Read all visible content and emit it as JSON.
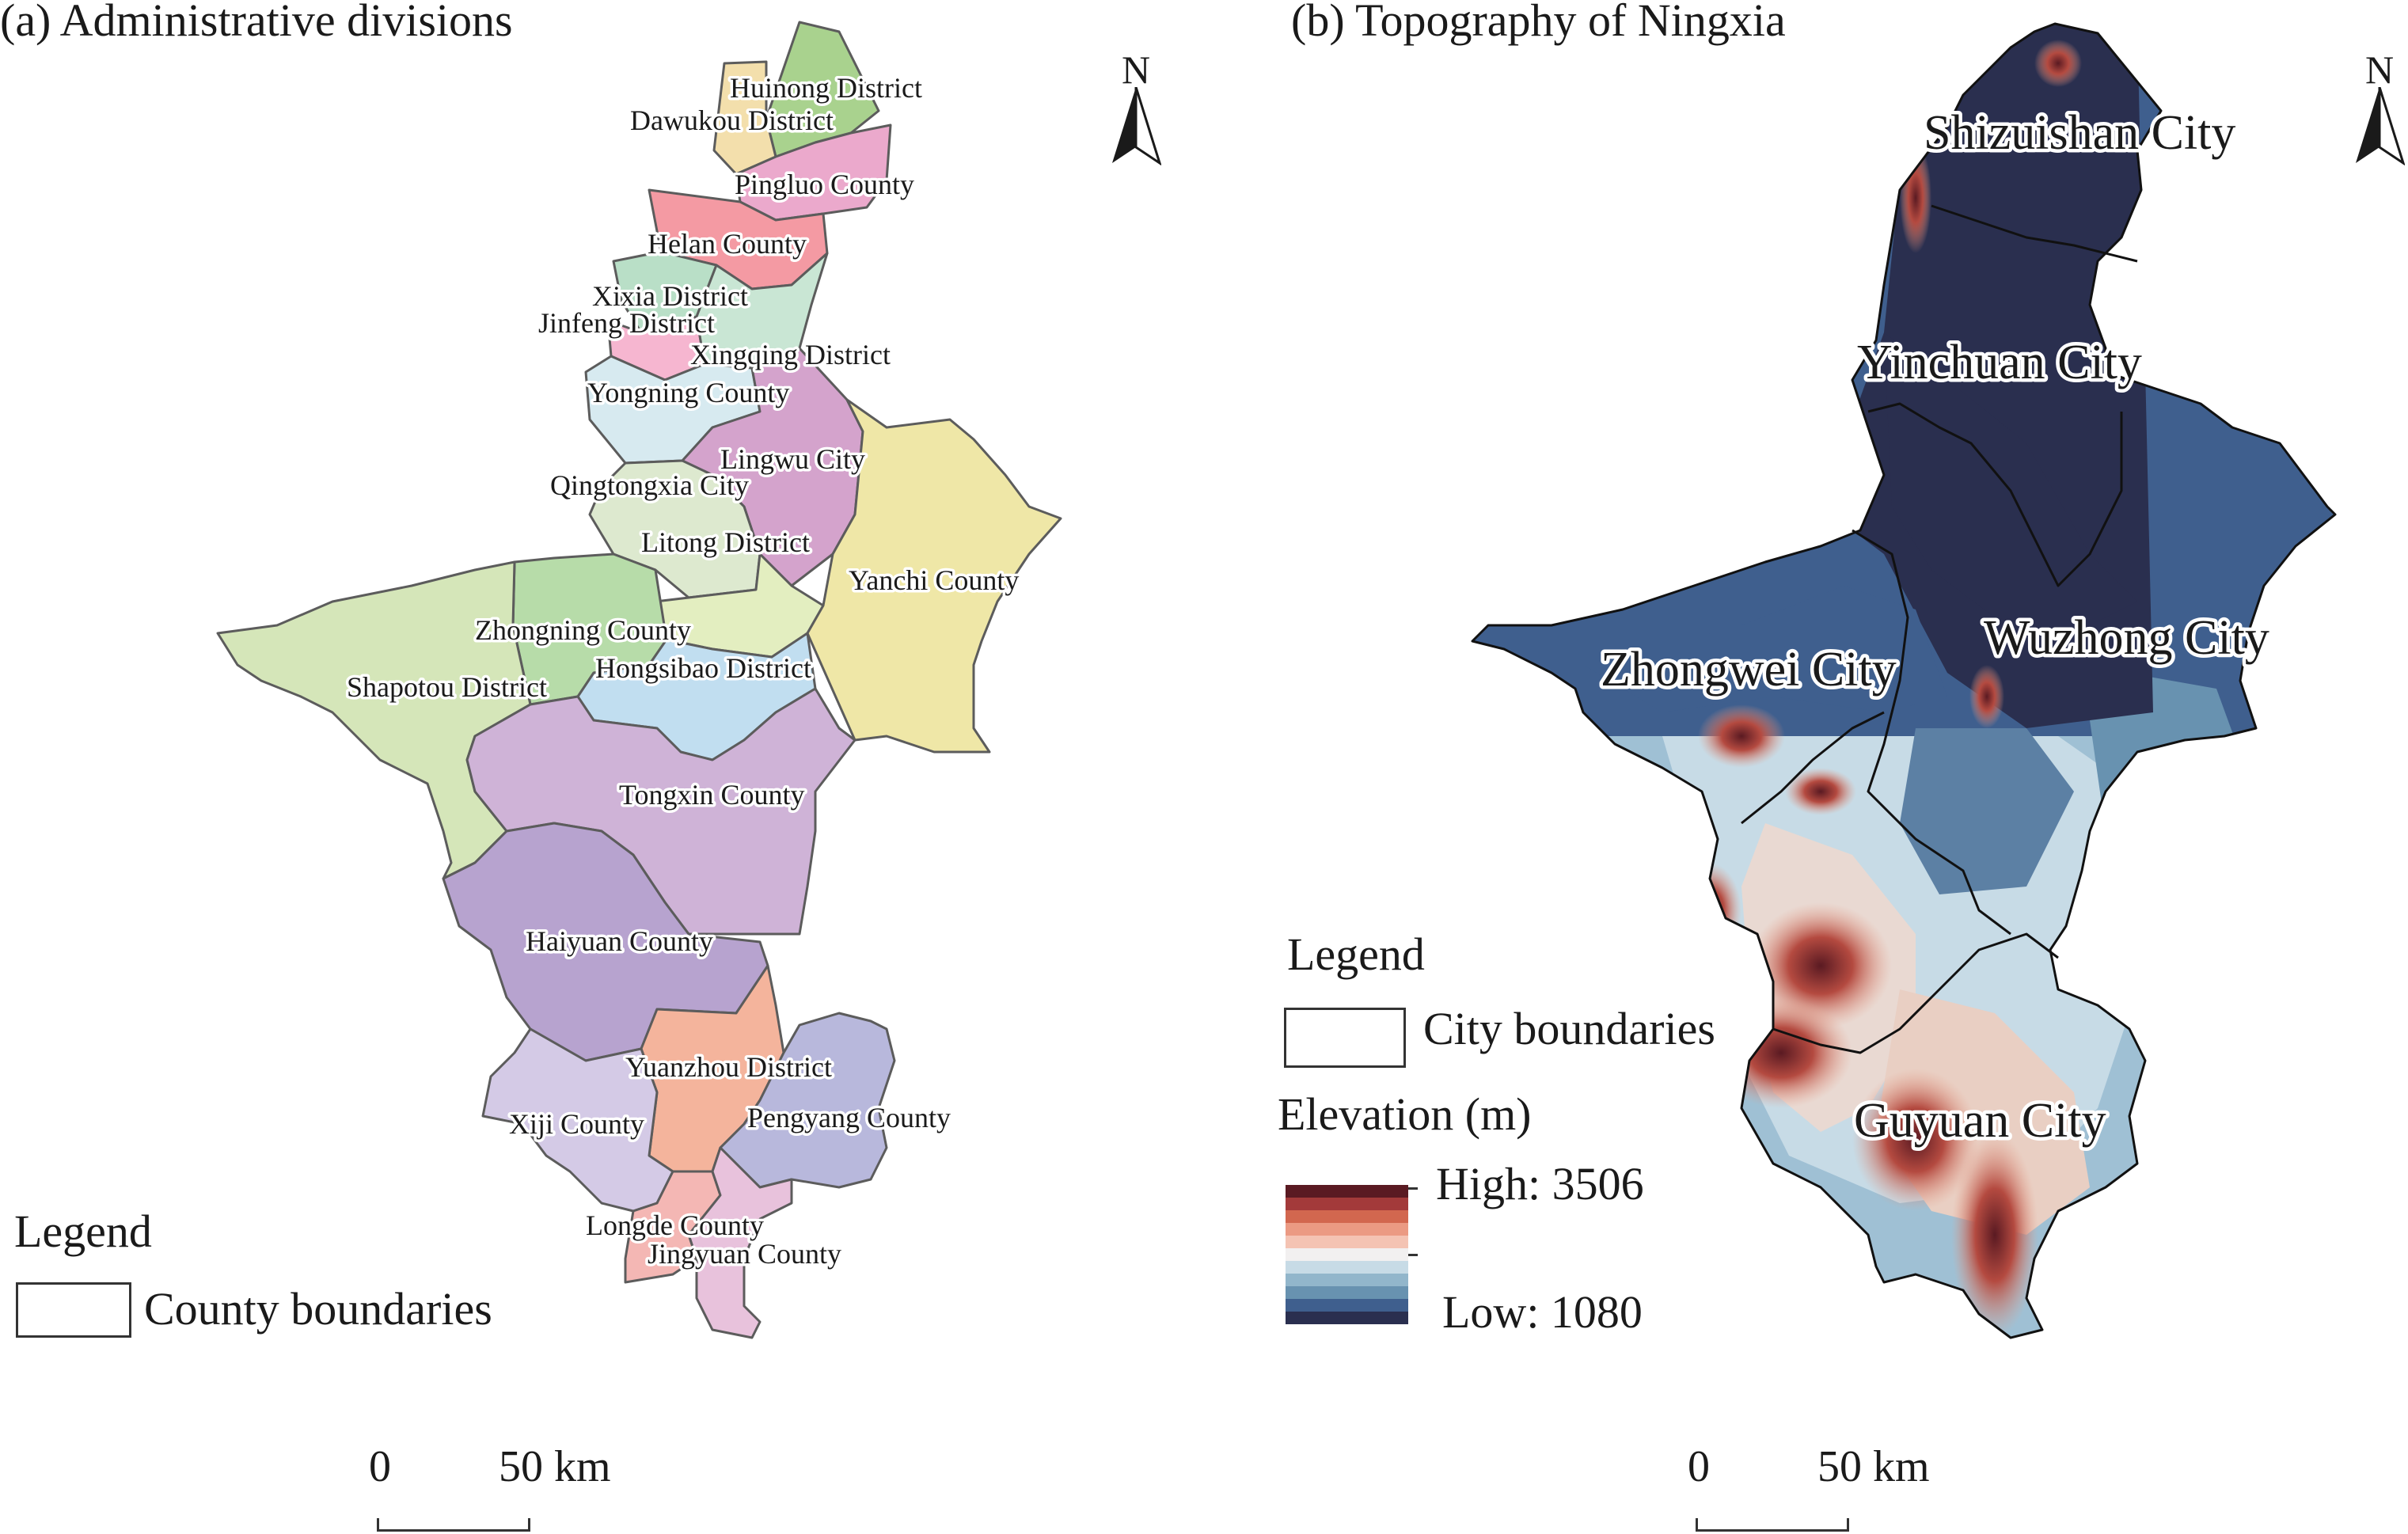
{
  "panel_a": {
    "title": "(a) Administrative divisions",
    "north_label": "N",
    "legend_title": "Legend",
    "legend_item": "County boundaries",
    "scale_start": "0",
    "scale_end": "50 km",
    "counties": [
      {
        "name": "Huinong District",
        "color": "#a9d28e"
      },
      {
        "name": "Dawukou District",
        "color": "#f3dfac"
      },
      {
        "name": "Pingluo County",
        "color": "#eba9cc"
      },
      {
        "name": "Helan County",
        "color": "#f49aa3"
      },
      {
        "name": "Xixia District",
        "color": "#b9dfc7"
      },
      {
        "name": "Jinfeng District",
        "color": "#f6b6d0"
      },
      {
        "name": "Xingqing District",
        "color": "#c9e6d4"
      },
      {
        "name": "Yongning County",
        "color": "#d7eaf0"
      },
      {
        "name": "Lingwu City",
        "color": "#d4a3cc"
      },
      {
        "name": "Qingtongxia City",
        "color": "#dde9cf"
      },
      {
        "name": "Litong District",
        "color": "#e3eec0"
      },
      {
        "name": "Yanchi County",
        "color": "#efe7a7"
      },
      {
        "name": "Zhongning County",
        "color": "#b7dca9"
      },
      {
        "name": "Hongsibao District",
        "color": "#c1def0"
      },
      {
        "name": "Shapotou District",
        "color": "#d5e6b9"
      },
      {
        "name": "Tongxin County",
        "color": "#cfb3d7"
      },
      {
        "name": "Haiyuan County",
        "color": "#b7a3cf"
      },
      {
        "name": "Yuanzhou District",
        "color": "#f4b49c"
      },
      {
        "name": "Xiji County",
        "color": "#d4cae6"
      },
      {
        "name": "Pengyang County",
        "color": "#b8b8dc"
      },
      {
        "name": "Longde County",
        "color": "#f4b7b4"
      },
      {
        "name": "Jingyuan County",
        "color": "#e8c2dc"
      }
    ]
  },
  "panel_b": {
    "title": "(b) Topography of Ningxia",
    "north_label": "N",
    "legend_title": "Legend",
    "legend_item": "City boundaries",
    "elevation_title": "Elevation (m)",
    "high_label": "High: 3506",
    "low_label": "Low: 1080",
    "elevation_high": 3506,
    "elevation_low": 1080,
    "ramp_colors": [
      "#5a1a22",
      "#a33a3a",
      "#d2674f",
      "#eb9a83",
      "#f4c3b3",
      "#f2f0f0",
      "#c7dbe6",
      "#92b6cb",
      "#6892b0",
      "#3f5f8e",
      "#2a2f4f"
    ],
    "scale_start": "0",
    "scale_end": "50 km",
    "cities": [
      "Shizuishan City",
      "Yinchuan City",
      "Wuzhong City",
      "Zhongwei City",
      "Guyuan City"
    ]
  }
}
